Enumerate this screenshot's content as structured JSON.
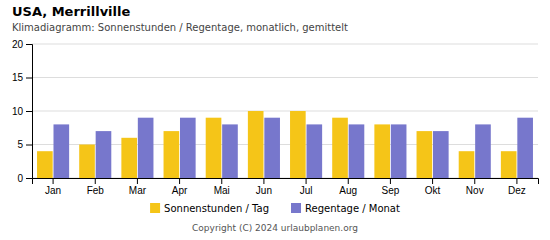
{
  "chart_data": {
    "type": "bar",
    "title": "USA, Merrillville",
    "subtitle": "Klimadiagramm: Sonnenstunden / Regentage, monatlich, gemittelt",
    "categories": [
      "Jan",
      "Feb",
      "Mar",
      "Apr",
      "Mai",
      "Jun",
      "Jul",
      "Aug",
      "Sep",
      "Okt",
      "Nov",
      "Dez"
    ],
    "series": [
      {
        "name": "Sonnenstunden / Tag",
        "color": "#F5C518",
        "values": [
          4,
          5,
          6,
          7,
          9,
          10,
          10,
          9,
          8,
          7,
          4,
          4
        ]
      },
      {
        "name": "Regentage / Monat",
        "color": "#7777CC",
        "values": [
          8,
          7,
          9,
          9,
          8,
          9,
          8,
          8,
          8,
          7,
          8,
          9
        ]
      }
    ],
    "ylim": [
      0,
      20
    ],
    "yticks": [
      0,
      5,
      10,
      15,
      20
    ],
    "grid": true,
    "legend": "bottom",
    "annotations": [
      "Copyright (C) 2024 urlaubplanen.org"
    ]
  }
}
